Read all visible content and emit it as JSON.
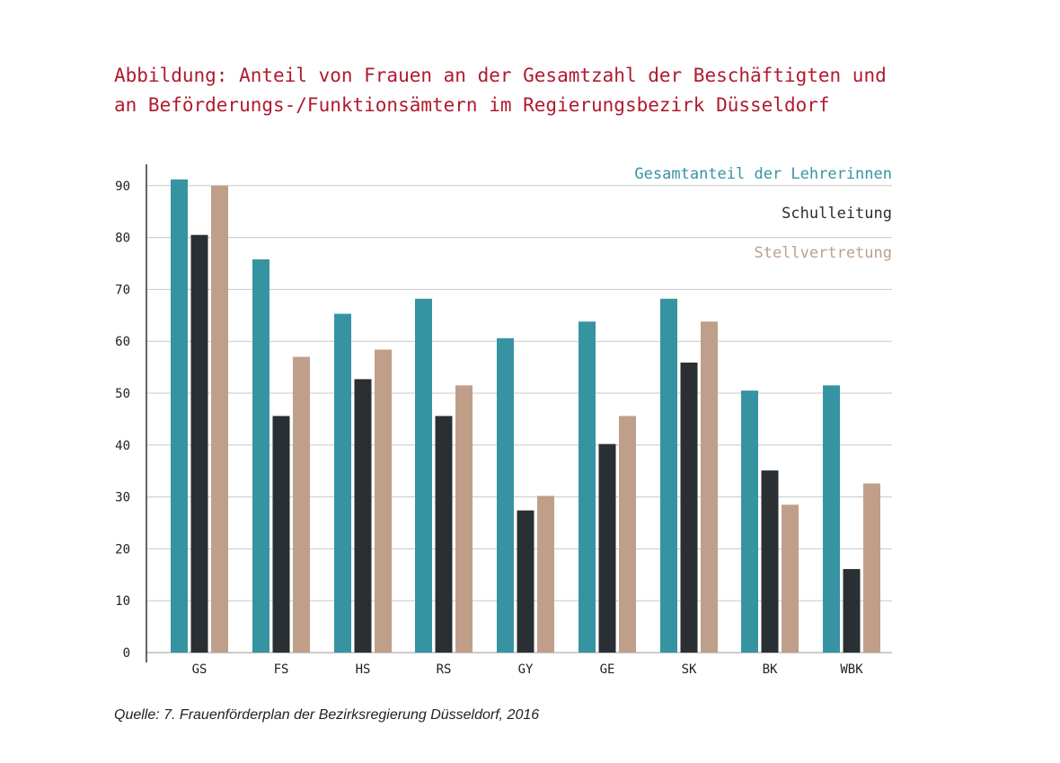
{
  "chart_data": {
    "type": "bar",
    "title_lines": [
      "Abbildung: Anteil von Frauen an der Gesamtzahl der Beschäftigten und",
      "an Beförderungs-/Funktionsämtern im Regierungsbezirk Düsseldorf"
    ],
    "categories": [
      "GS",
      "FS",
      "HS",
      "RS",
      "GY",
      "GE",
      "SK",
      "BK",
      "WBK"
    ],
    "series": [
      {
        "name": "Gesamtanteil der Lehrerinnen",
        "color": "#3694a2",
        "values": [
          91.2,
          75.8,
          65.3,
          68.2,
          60.6,
          63.8,
          68.2,
          50.5,
          51.5
        ]
      },
      {
        "name": "Schulleitung",
        "color": "#2a2f33",
        "values": [
          80.5,
          45.6,
          52.7,
          45.6,
          27.4,
          40.2,
          55.9,
          35.1,
          16.1
        ]
      },
      {
        "name": "Stellvertretung",
        "color": "#bf9f89",
        "values": [
          90.0,
          57.0,
          58.4,
          51.5,
          30.2,
          45.6,
          63.8,
          28.5,
          32.6
        ]
      }
    ],
    "yticks": [
      0,
      10,
      20,
      30,
      40,
      50,
      60,
      70,
      80,
      90
    ],
    "ylim": [
      0,
      95
    ],
    "xlabel": "",
    "ylabel": "",
    "grid": true,
    "legend_position": "top-right"
  },
  "source": "Quelle: 7. Frauenförderplan der Bezirksregierung Düsseldorf, 2016"
}
